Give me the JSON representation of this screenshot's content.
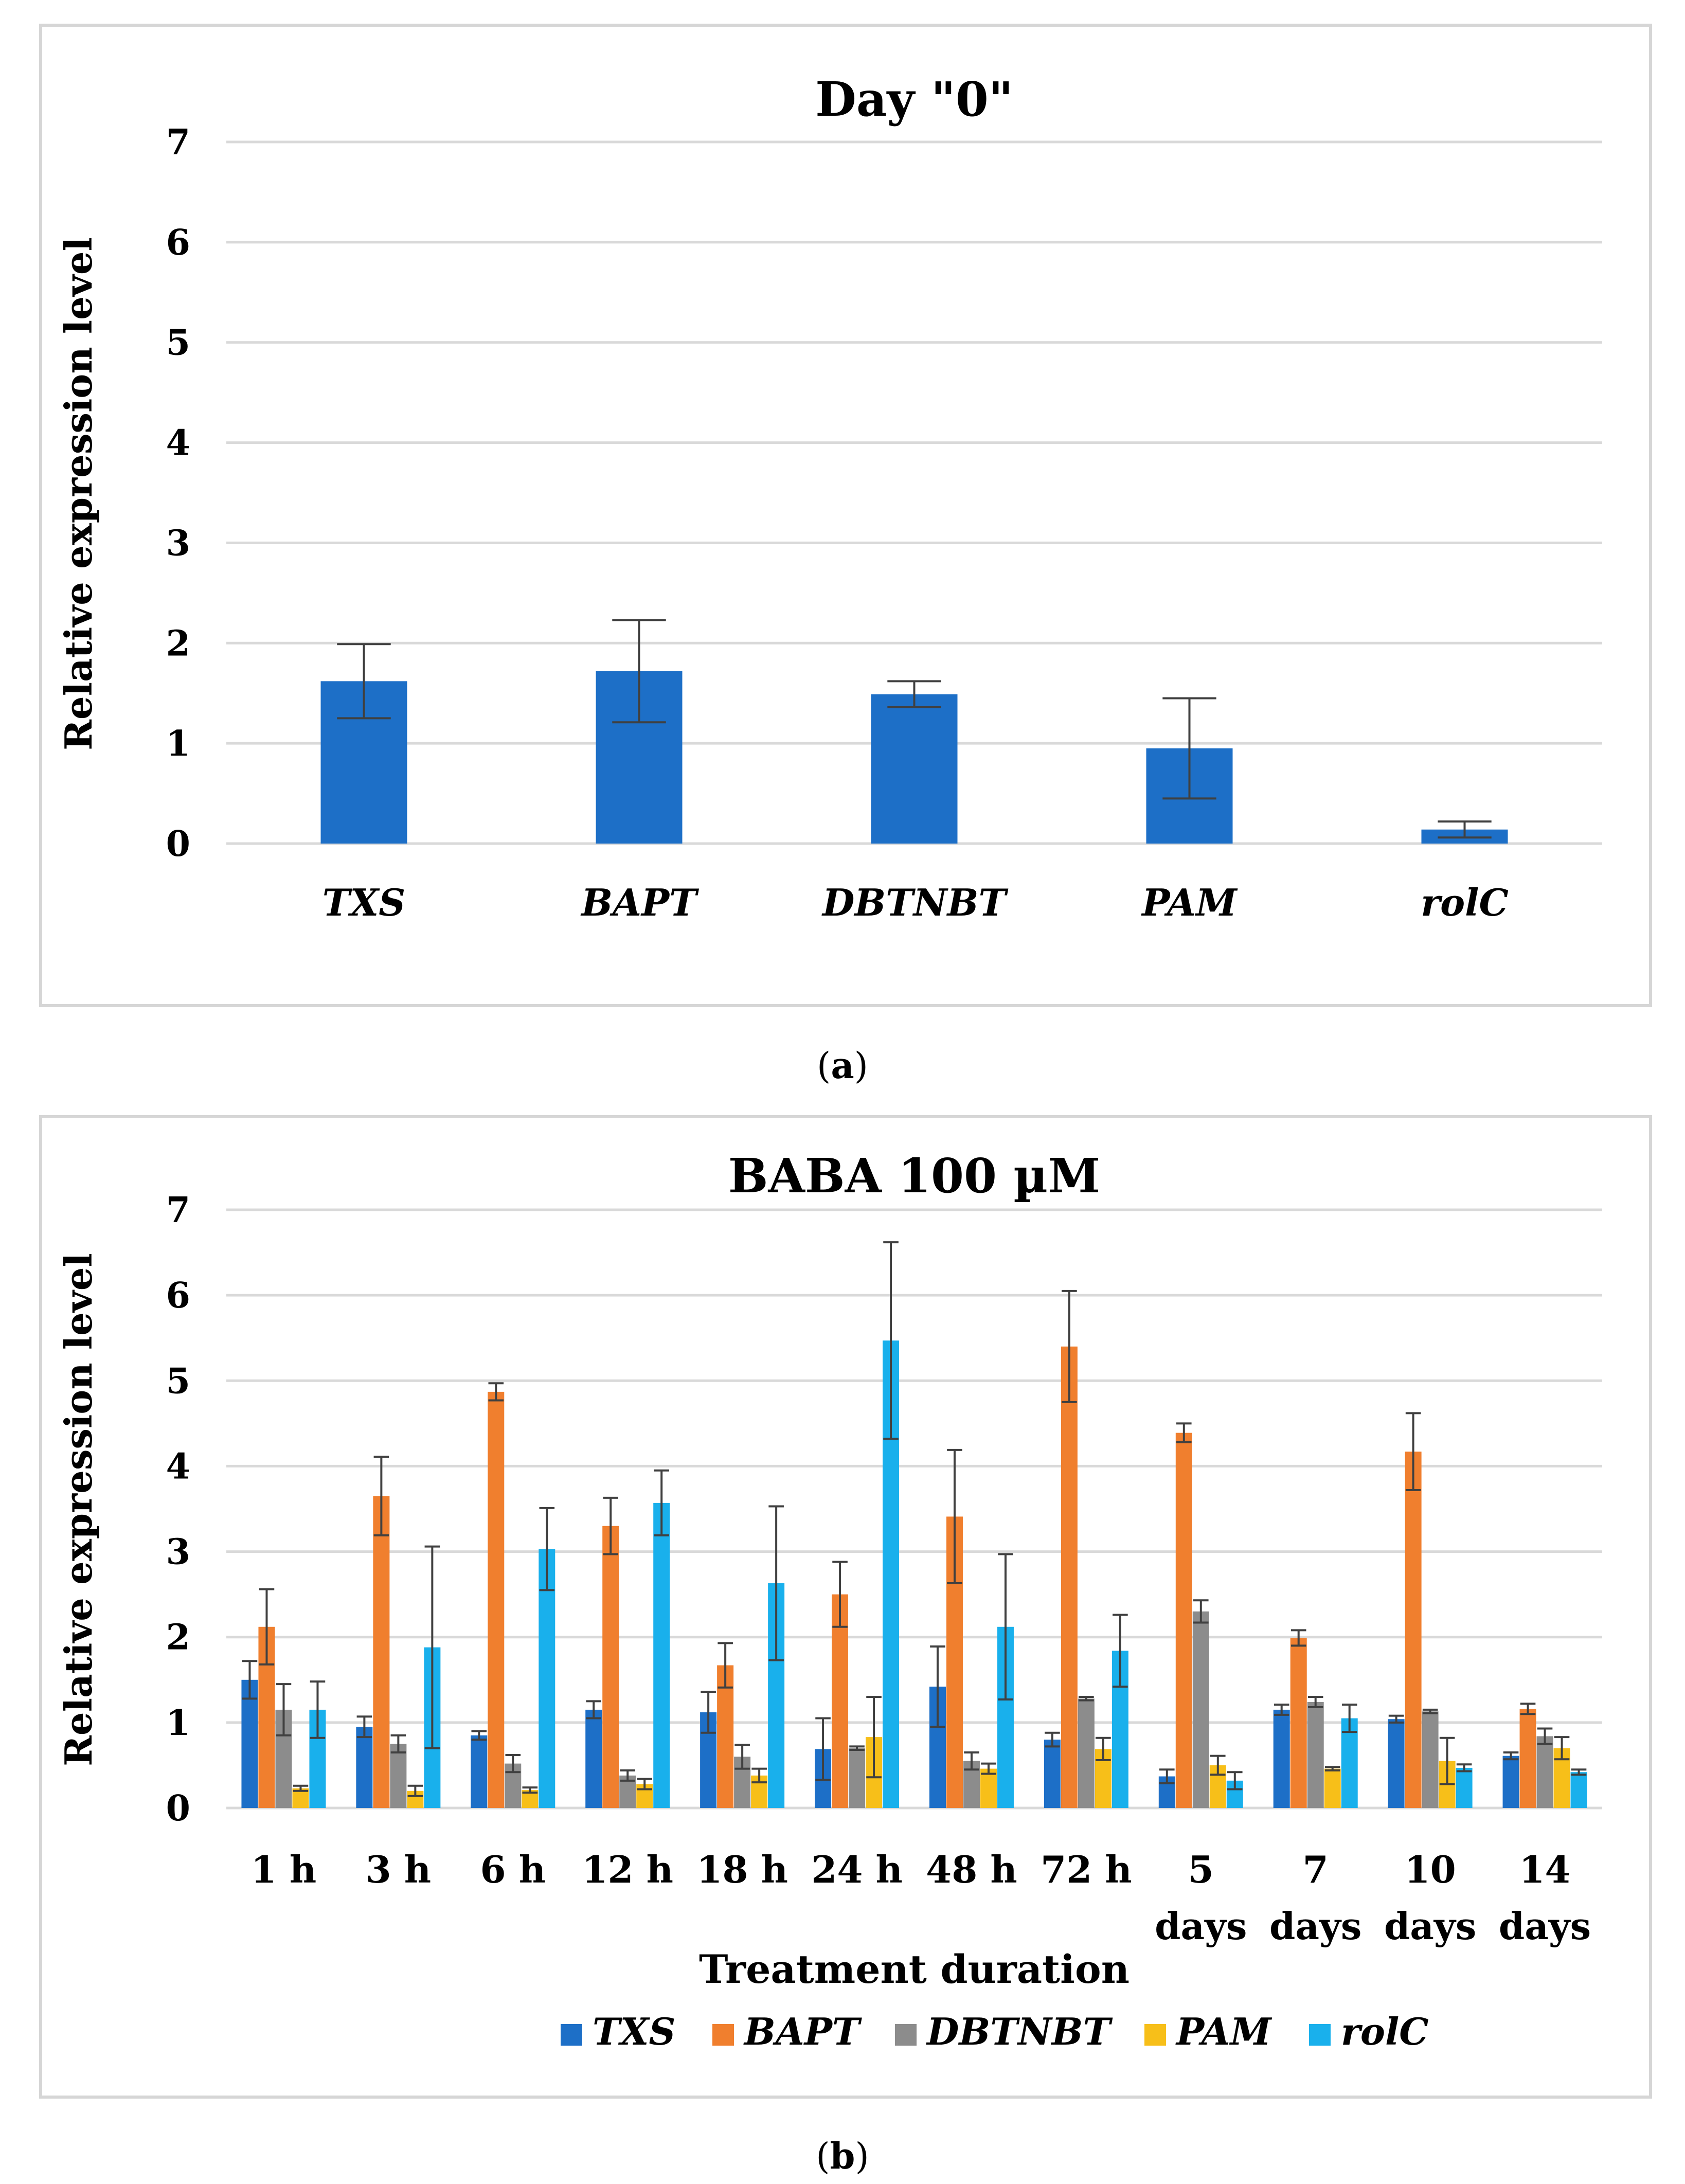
{
  "captions": {
    "a": "a",
    "b": "b"
  },
  "chart_data": [
    {
      "type": "bar",
      "title": "Day \"0\"",
      "ylabel": "Relative  expression level",
      "xlabel": "",
      "ylim": [
        0,
        7
      ],
      "yticks": [
        "0",
        "1",
        "2",
        "3",
        "4",
        "5",
        "6",
        "7"
      ],
      "categories": [
        "TXS",
        "BAPT",
        "DBTNBT",
        "PAM",
        "rolC"
      ],
      "series": [
        {
          "values": [
            1.62,
            1.72,
            1.49,
            0.95,
            0.14
          ],
          "errors": [
            0.37,
            0.51,
            0.13,
            0.5,
            0.08
          ],
          "color": "#1d6fc7"
        }
      ],
      "grid": true,
      "legend": "none"
    },
    {
      "type": "bar",
      "title": "BABA 100 µM",
      "ylabel": "Relative  expression level",
      "xlabel": "Treatment duration",
      "ylim": [
        0,
        7
      ],
      "yticks": [
        "0",
        "1",
        "2",
        "3",
        "4",
        "5",
        "6",
        "7"
      ],
      "categories": [
        [
          "1 h"
        ],
        [
          "3 h"
        ],
        [
          "6 h"
        ],
        [
          "12 h"
        ],
        [
          "18 h"
        ],
        [
          "24 h"
        ],
        [
          "48 h"
        ],
        [
          "72 h"
        ],
        [
          "5",
          "days"
        ],
        [
          "7",
          "days"
        ],
        [
          "10",
          "days"
        ],
        [
          "14",
          "days"
        ]
      ],
      "series": [
        {
          "name": "TXS",
          "color": "#1d6fc7",
          "values": [
            1.5,
            0.95,
            0.85,
            1.15,
            1.12,
            0.69,
            1.42,
            0.8,
            0.37,
            1.15,
            1.04,
            0.61
          ],
          "errors": [
            0.22,
            0.12,
            0.05,
            0.1,
            0.24,
            0.36,
            0.47,
            0.08,
            0.08,
            0.06,
            0.04,
            0.04
          ]
        },
        {
          "name": "BAPT",
          "color": "#f07f2e",
          "values": [
            2.12,
            3.65,
            4.87,
            3.3,
            1.67,
            2.5,
            3.41,
            5.4,
            4.39,
            1.99,
            4.17,
            1.16
          ],
          "errors": [
            0.44,
            0.46,
            0.1,
            0.33,
            0.26,
            0.38,
            0.78,
            0.65,
            0.11,
            0.09,
            0.45,
            0.06
          ]
        },
        {
          "name": "DBTNBT",
          "color": "#8c8c8c",
          "values": [
            1.15,
            0.75,
            0.52,
            0.38,
            0.6,
            0.7,
            0.55,
            1.28,
            2.3,
            1.24,
            1.13,
            0.84
          ],
          "errors": [
            0.3,
            0.1,
            0.1,
            0.06,
            0.14,
            0.02,
            0.1,
            0.02,
            0.13,
            0.06,
            0.02,
            0.09
          ]
        },
        {
          "name": "PAM",
          "color": "#f7bf19",
          "values": [
            0.23,
            0.2,
            0.21,
            0.28,
            0.38,
            0.83,
            0.46,
            0.69,
            0.5,
            0.46,
            0.55,
            0.7
          ],
          "errors": [
            0.03,
            0.06,
            0.03,
            0.06,
            0.08,
            0.47,
            0.06,
            0.13,
            0.11,
            0.02,
            0.27,
            0.13
          ]
        },
        {
          "name": "rolC",
          "color": "#19b0ec",
          "values": [
            1.15,
            1.88,
            3.03,
            3.57,
            2.63,
            5.47,
            2.12,
            1.84,
            0.32,
            1.05,
            0.47,
            0.42
          ],
          "errors": [
            0.33,
            1.18,
            0.48,
            0.38,
            0.9,
            1.15,
            0.85,
            0.42,
            0.1,
            0.16,
            0.04,
            0.03
          ]
        }
      ],
      "grid": true,
      "legend": "bottom"
    }
  ]
}
